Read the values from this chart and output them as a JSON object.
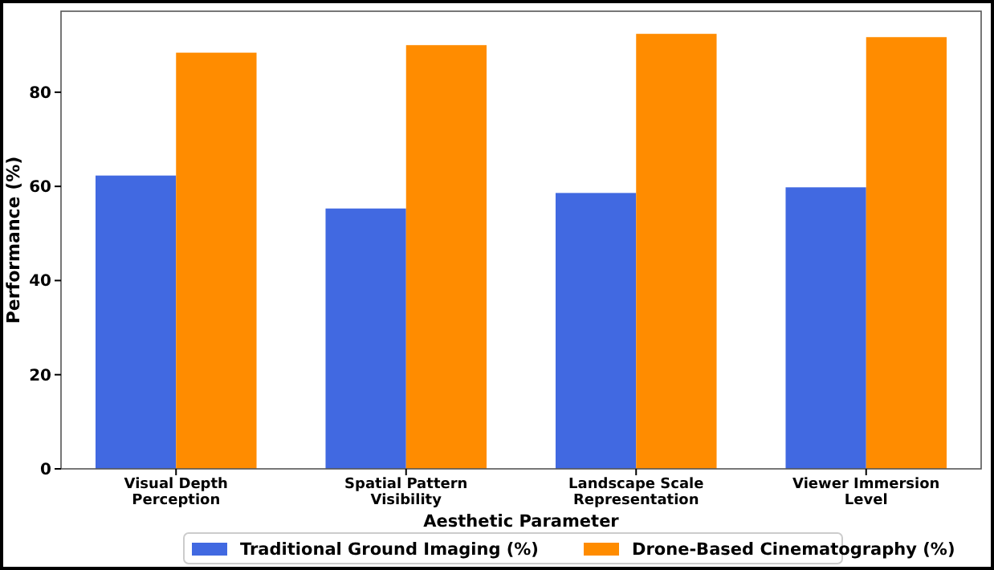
{
  "chart_data": {
    "type": "bar",
    "xlabel": "Aesthetic Parameter",
    "ylabel": "Performance (%)",
    "categories": [
      "Visual Depth\nPerception",
      "Spatial Pattern\nVisibility",
      "Landscape Scale\nRepresentation",
      "Viewer Immersion\nLevel"
    ],
    "series": [
      {
        "name": "Traditional Ground Imaging (%)",
        "color": "#4169e1",
        "values": [
          62.3,
          55.3,
          58.6,
          59.8
        ]
      },
      {
        "name": "Drone-Based Cinematography (%)",
        "color": "#ff8c00",
        "values": [
          88.4,
          90.0,
          92.4,
          91.7
        ]
      }
    ],
    "ylim": [
      0,
      97.2
    ],
    "yticks": [
      0,
      20,
      40,
      60,
      80
    ],
    "grid": false,
    "legend": "bottom"
  }
}
